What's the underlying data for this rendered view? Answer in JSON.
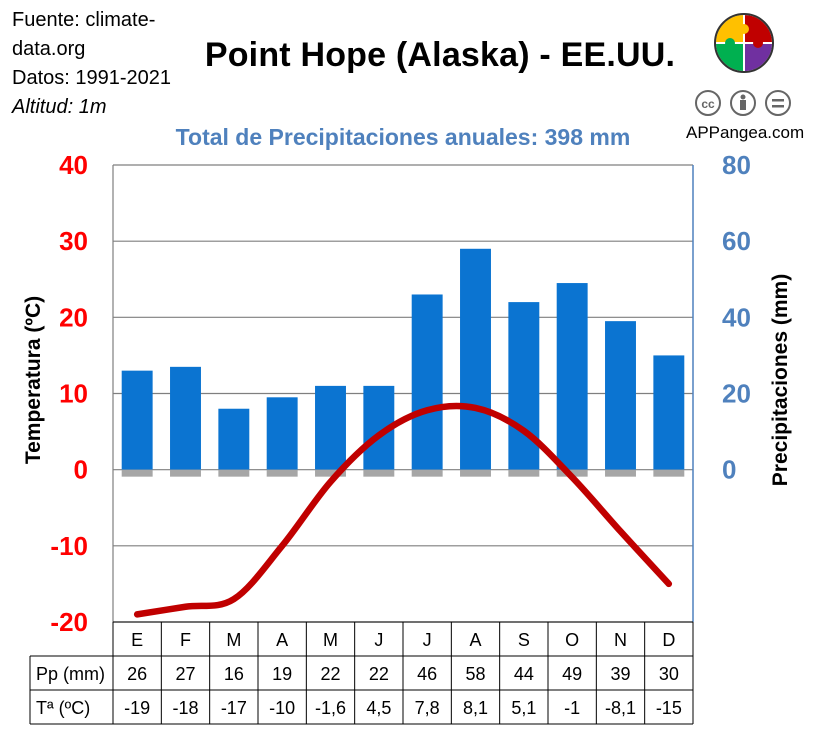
{
  "header": {
    "source_line1": "Fuente: climate-",
    "source_line2": "data.org",
    "data_range": "Datos: 1991-2021",
    "altitude": "Altitud: 1m",
    "title": "Point Hope (Alaska) - EE.UU.",
    "brand": "APPangea.com"
  },
  "chart_data": {
    "type": "bar",
    "title": "Total de Precipitaciones anuales: 398 mm",
    "categories": [
      "E",
      "F",
      "M",
      "A",
      "M",
      "J",
      "J",
      "A",
      "S",
      "O",
      "N",
      "D"
    ],
    "series": [
      {
        "name": "Pp (mm)",
        "type": "bar",
        "axis": "right",
        "values": [
          26,
          27,
          16,
          19,
          22,
          22,
          46,
          58,
          44,
          49,
          39,
          30
        ]
      },
      {
        "name": "Tª (ºC)",
        "type": "line",
        "axis": "left",
        "values": [
          -19,
          -18,
          -17,
          -10,
          -1.6,
          4.5,
          7.8,
          8.1,
          5.1,
          -1,
          -8.1,
          -15
        ]
      }
    ],
    "y_left": {
      "label": "Temperatura (ºC)",
      "min": -20,
      "max": 40,
      "ticks": [
        40,
        30,
        20,
        10,
        0,
        -10,
        -20
      ]
    },
    "y_right": {
      "label": "Precipitaciones (mm)",
      "min": 0,
      "max": 80,
      "ticks": [
        80,
        60,
        40,
        20,
        0
      ]
    },
    "table": {
      "row_labels": [
        "Pp (mm)",
        "Tª (ºC)"
      ],
      "pp_text": [
        "26",
        "27",
        "16",
        "19",
        "22",
        "22",
        "46",
        "58",
        "44",
        "49",
        "39",
        "30"
      ],
      "temp_text": [
        "-19",
        "-18",
        "-17",
        "-10",
        "-1,6",
        "4,5",
        "7,8",
        "8,1",
        "5,1",
        "-1",
        "-8,1",
        "-15"
      ]
    },
    "colors": {
      "bar": "#0b74d1",
      "line": "#c00000",
      "left_axis": "#ff0000",
      "right_axis": "#4f81bd"
    },
    "grid": true
  },
  "logos": [
    {
      "icon": "puzzle-logo-icon",
      "colors": [
        "#ffc000",
        "#c00000",
        "#00b050",
        "#7030a0"
      ]
    },
    {
      "icon": "cc-icon"
    },
    {
      "icon": "by-icon"
    },
    {
      "icon": "nd-icon"
    }
  ]
}
